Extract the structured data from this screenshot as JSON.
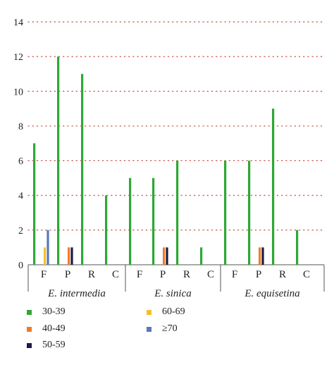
{
  "chart_data": {
    "type": "bar",
    "ylim": [
      0,
      14
    ],
    "yticks": [
      "0",
      "2",
      "4",
      "6",
      "8",
      "10",
      "12",
      "14"
    ],
    "grid": "horizontal dotted (red)",
    "categories": [
      "F",
      "P",
      "R",
      "C"
    ],
    "groups": [
      {
        "label": "E. intermedia",
        "values": {
          "30-39": [
            7,
            12,
            11,
            4
          ],
          "40-49": [
            0,
            1,
            0,
            0
          ],
          "50-59": [
            0,
            1,
            0,
            0
          ],
          "60-69": [
            1,
            0,
            0,
            0
          ],
          "≥70": [
            2,
            0,
            0,
            0
          ]
        }
      },
      {
        "label": "E. sinica",
        "values": {
          "30-39": [
            5,
            5,
            6,
            1
          ],
          "40-49": [
            0,
            1,
            0,
            0
          ],
          "50-59": [
            0,
            1,
            0,
            0
          ],
          "60-69": [
            0,
            0,
            0,
            0
          ],
          "≥70": [
            0,
            0,
            0,
            0
          ]
        }
      },
      {
        "label": "E. equisetina",
        "values": {
          "30-39": [
            6,
            6,
            9,
            2
          ],
          "40-49": [
            0,
            1,
            0,
            0
          ],
          "50-59": [
            0,
            1,
            0,
            0
          ],
          "60-69": [
            0,
            0,
            0,
            0
          ],
          "≥70": [
            0,
            0,
            0,
            0
          ]
        }
      }
    ],
    "series": [
      {
        "name": "30-39",
        "color": "#2ea836"
      },
      {
        "name": "40-49",
        "color": "#ee7b2b"
      },
      {
        "name": "50-59",
        "color": "#1d1a44"
      },
      {
        "name": "60-69",
        "color": "#f5bf2b"
      },
      {
        "name": "≥70",
        "color": "#5a79bb"
      }
    ],
    "legend_position": "bottom-left",
    "legend": {
      "items": [
        "30-39",
        "40-49",
        "50-59",
        "60-69",
        "≥70"
      ]
    }
  }
}
